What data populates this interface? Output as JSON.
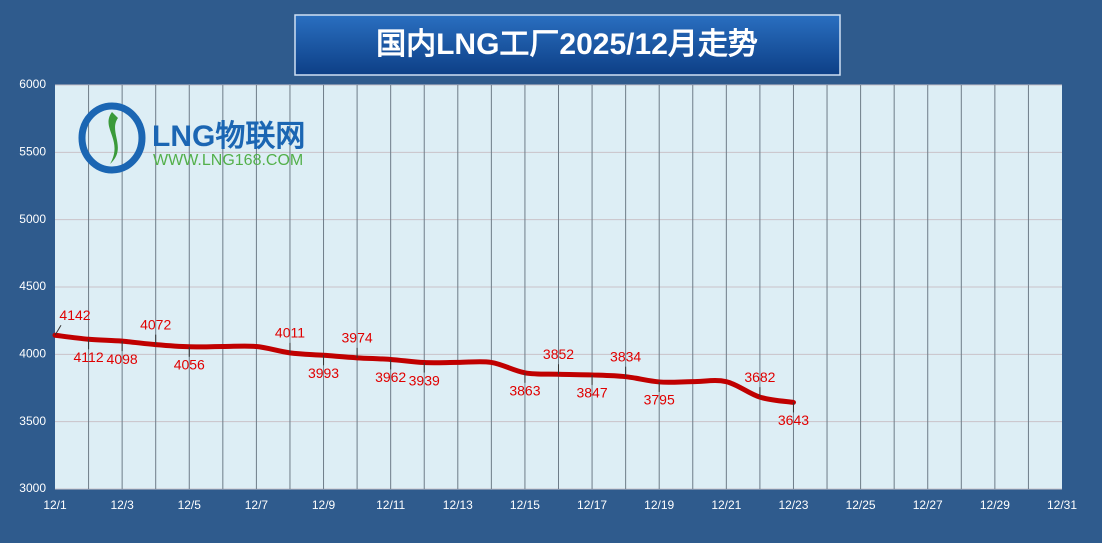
{
  "chart_data": {
    "type": "line",
    "title": "国内LNG工厂2025/12月走势",
    "logo_text": "LNG物联网",
    "logo_url": "WWW.LNG168.COM",
    "categories": [
      "12/1",
      null,
      "12/3",
      null,
      "12/5",
      null,
      "12/7",
      null,
      "12/9",
      null,
      "12/11",
      null,
      "12/13",
      null,
      "12/15",
      null,
      "12/17",
      null,
      "12/19",
      null,
      "12/21",
      null,
      "12/23",
      null,
      "12/25",
      null,
      "12/27",
      null,
      "12/29",
      null,
      "12/31"
    ],
    "values": [
      4142,
      4112,
      4098,
      4072,
      4056,
      4058,
      4058,
      4011,
      3993,
      3974,
      3962,
      3939,
      3940,
      3940,
      3863,
      3852,
      3847,
      3834,
      3795,
      3797,
      3797,
      3682,
      3643,
      null,
      null,
      null,
      null,
      null,
      null,
      null,
      null
    ],
    "value_labels": [
      "4142",
      "4112",
      "4098",
      "4072",
      "4056",
      null,
      null,
      "4011",
      "3993",
      "3974",
      "3962",
      "3939",
      null,
      null,
      "3863",
      "3852",
      "3847",
      "3834",
      "3795",
      null,
      null,
      "3682",
      "3643",
      null,
      null,
      null,
      null,
      null,
      null,
      null,
      null
    ],
    "color": "#c00000",
    "ylim": [
      3000,
      6000
    ],
    "yticks": [
      3000,
      3500,
      4000,
      4500,
      5000,
      5500,
      6000
    ],
    "grid": true
  }
}
